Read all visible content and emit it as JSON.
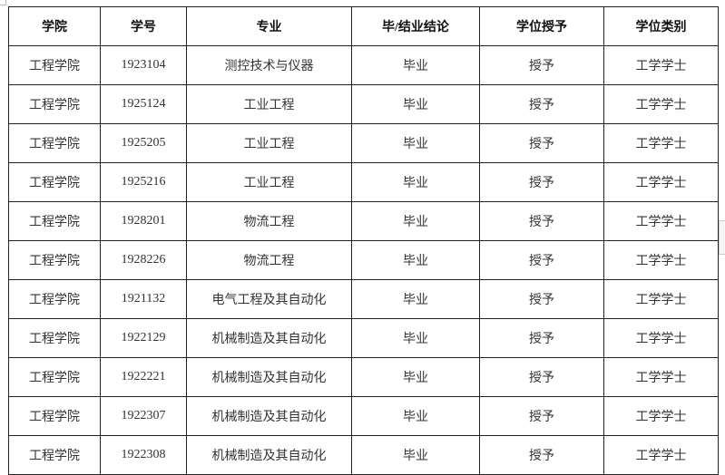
{
  "table": {
    "headers": [
      "学院",
      "学号",
      "专业",
      "毕/结业结论",
      "学位授予",
      "学位类别"
    ],
    "rows": [
      [
        "工程学院",
        "1923104",
        "测控技术与仪器",
        "毕业",
        "授予",
        "工学学士"
      ],
      [
        "工程学院",
        "1925124",
        "工业工程",
        "毕业",
        "授予",
        "工学学士"
      ],
      [
        "工程学院",
        "1925205",
        "工业工程",
        "毕业",
        "授予",
        "工学学士"
      ],
      [
        "工程学院",
        "1925216",
        "工业工程",
        "毕业",
        "授予",
        "工学学士"
      ],
      [
        "工程学院",
        "1928201",
        "物流工程",
        "毕业",
        "授予",
        "工学学士"
      ],
      [
        "工程学院",
        "1928226",
        "物流工程",
        "毕业",
        "授予",
        "工学学士"
      ],
      [
        "工程学院",
        "1921132",
        "电气工程及其自动化",
        "毕业",
        "授予",
        "工学学士"
      ],
      [
        "工程学院",
        "1922129",
        "机械制造及其自动化",
        "毕业",
        "授予",
        "工学学士"
      ],
      [
        "工程学院",
        "1922221",
        "机械制造及其自动化",
        "毕业",
        "授予",
        "工学学士"
      ],
      [
        "工程学院",
        "1922307",
        "机械制造及其自动化",
        "毕业",
        "授予",
        "工学学士"
      ],
      [
        "工程学院",
        "1922308",
        "机械制造及其自动化",
        "毕业",
        "授予",
        "工学学士"
      ]
    ]
  }
}
